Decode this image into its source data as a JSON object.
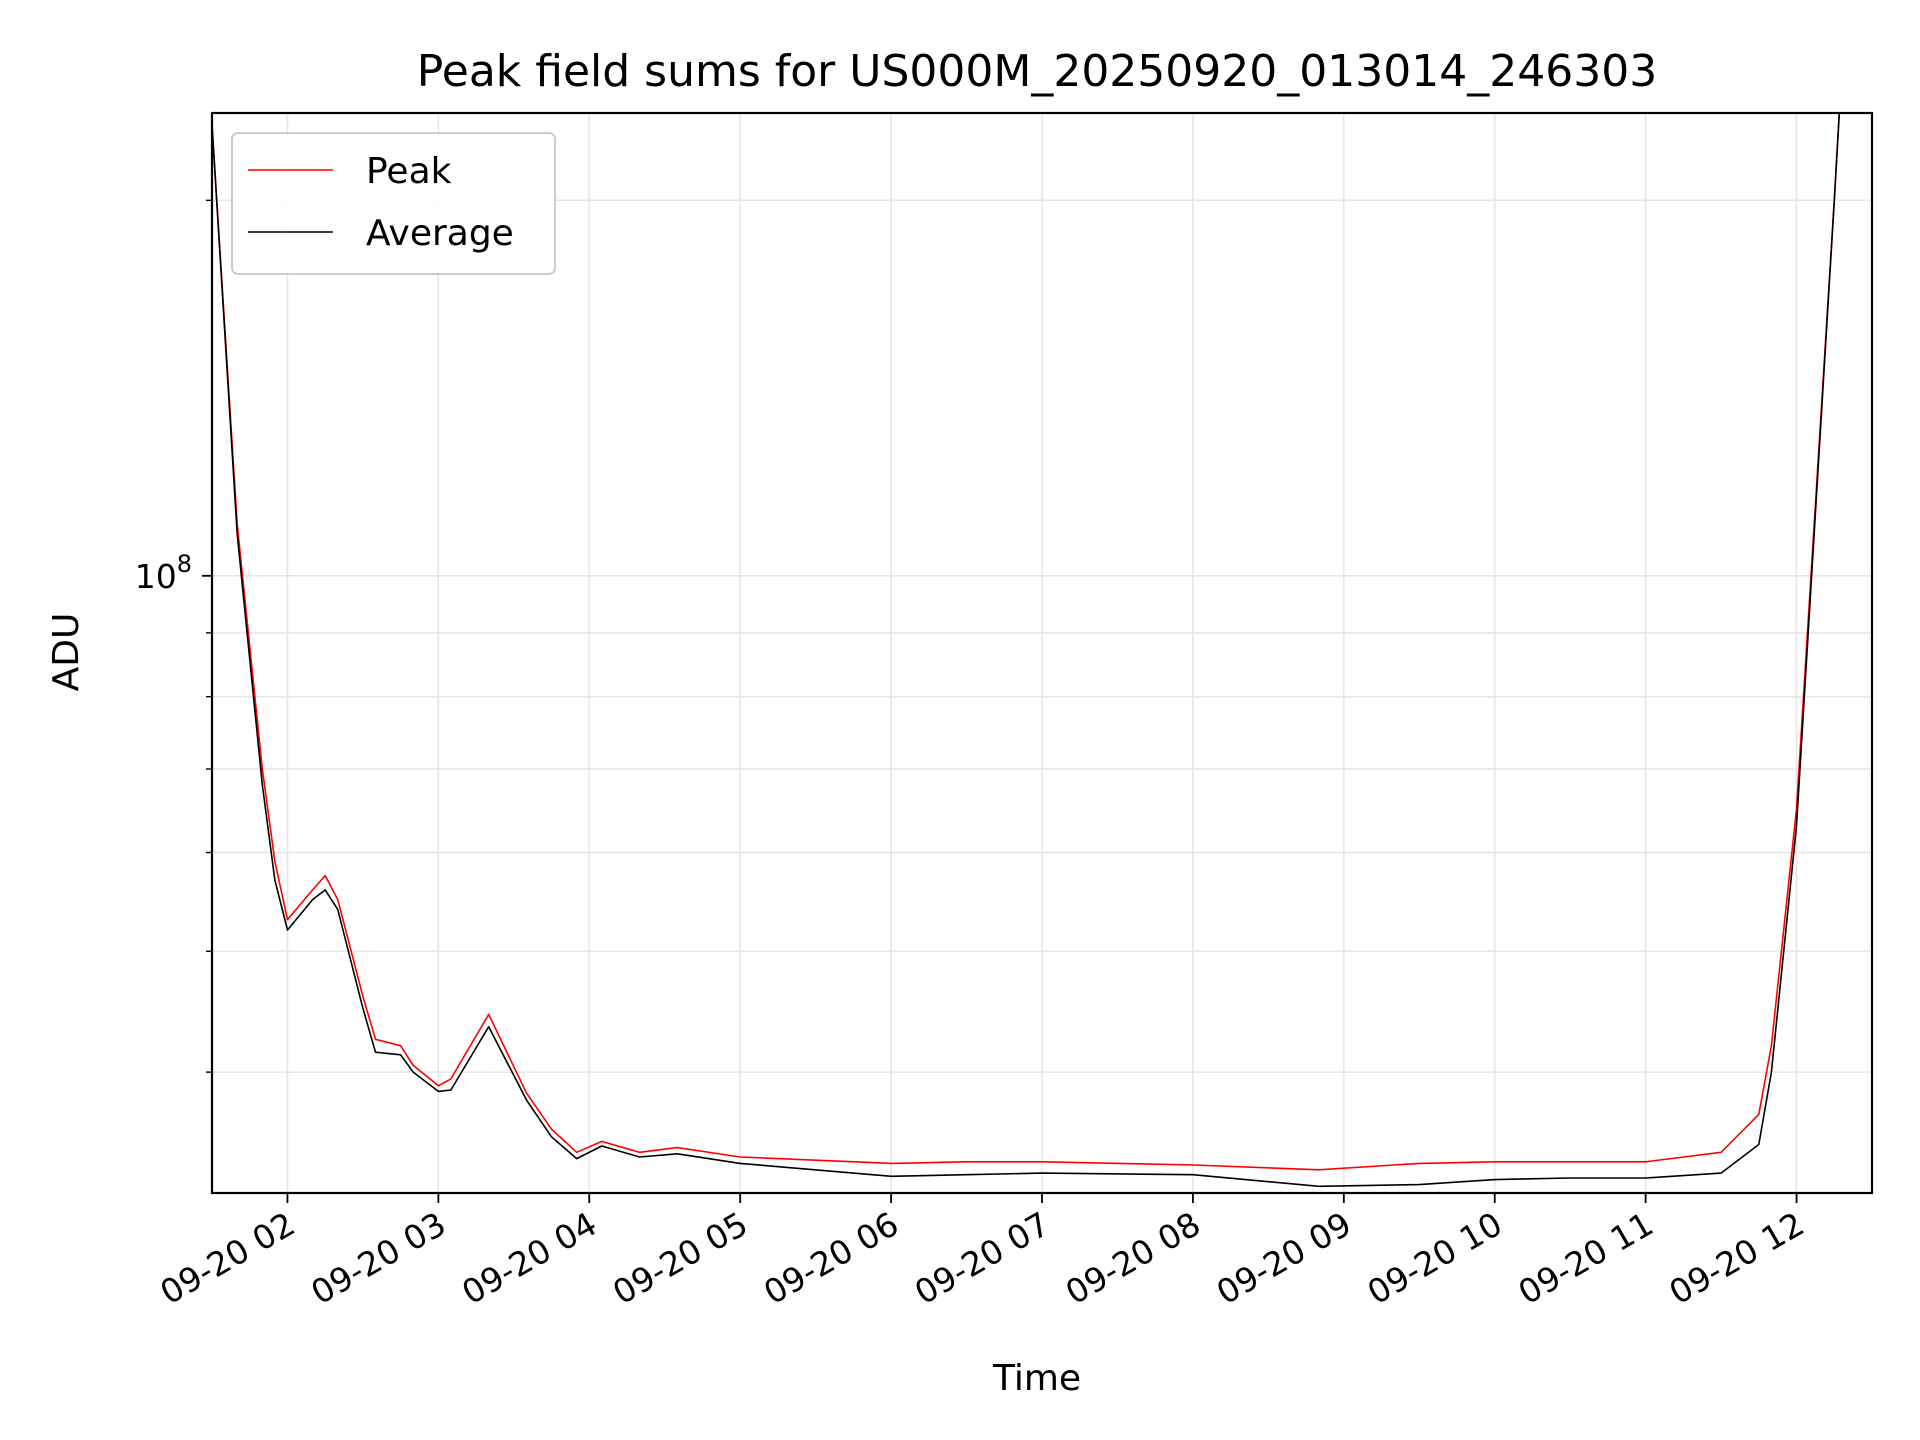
{
  "chart_data": {
    "type": "line",
    "title": "Peak field sums for US000M_20250920_013014_246303",
    "xlabel": "Time",
    "ylabel": "ADU",
    "yscale": "log",
    "ylim": [
      32000000,
      235000000
    ],
    "xlim": [
      "2025-09-20 01:30",
      "2025-09-20 12:30"
    ],
    "x_ticks": [
      "09-20 02",
      "09-20 03",
      "09-20 04",
      "09-20 05",
      "09-20 06",
      "09-20 07",
      "09-20 08",
      "09-20 09",
      "09-20 10",
      "09-20 11",
      "09-20 12"
    ],
    "y_ticks": [
      {
        "value": 100000000,
        "label_base": "10",
        "label_exp": "8"
      }
    ],
    "grid": true,
    "legend_position": "upper left",
    "series": [
      {
        "name": "Peak",
        "color": "#ff0000",
        "x": [
          "2025-09-20 01:30",
          "2025-09-20 01:40",
          "2025-09-20 01:50",
          "2025-09-20 01:55",
          "2025-09-20 02:00",
          "2025-09-20 02:10",
          "2025-09-20 02:15",
          "2025-09-20 02:20",
          "2025-09-20 02:30",
          "2025-09-20 02:35",
          "2025-09-20 02:45",
          "2025-09-20 02:50",
          "2025-09-20 03:00",
          "2025-09-20 03:05",
          "2025-09-20 03:20",
          "2025-09-20 03:35",
          "2025-09-20 03:45",
          "2025-09-20 03:55",
          "2025-09-20 04:05",
          "2025-09-20 04:20",
          "2025-09-20 04:35",
          "2025-09-20 05:00",
          "2025-09-20 06:00",
          "2025-09-20 06:30",
          "2025-09-20 07:00",
          "2025-09-20 08:00",
          "2025-09-20 08:50",
          "2025-09-20 09:30",
          "2025-09-20 10:00",
          "2025-09-20 10:30",
          "2025-09-20 11:00",
          "2025-09-20 11:30",
          "2025-09-20 11:45",
          "2025-09-20 11:50",
          "2025-09-20 12:00",
          "2025-09-20 12:15",
          "2025-09-20 12:17"
        ],
        "values": [
          230000000,
          110000000,
          70000000,
          59000000,
          53000000,
          56000000,
          57500000,
          55000000,
          46000000,
          42500000,
          42000000,
          40500000,
          39000000,
          39500000,
          44500000,
          38500000,
          36000000,
          34500000,
          35200000,
          34500000,
          34800000,
          34200000,
          33800000,
          33900000,
          33900000,
          33700000,
          33400000,
          33800000,
          33900000,
          33900000,
          33900000,
          34500000,
          37000000,
          42000000,
          65000000,
          200000000,
          235000000
        ]
      },
      {
        "name": "Average",
        "color": "#000000",
        "x": [
          "2025-09-20 01:30",
          "2025-09-20 01:40",
          "2025-09-20 01:50",
          "2025-09-20 01:55",
          "2025-09-20 02:00",
          "2025-09-20 02:10",
          "2025-09-20 02:15",
          "2025-09-20 02:20",
          "2025-09-20 02:30",
          "2025-09-20 02:35",
          "2025-09-20 02:45",
          "2025-09-20 02:50",
          "2025-09-20 03:00",
          "2025-09-20 03:05",
          "2025-09-20 03:20",
          "2025-09-20 03:35",
          "2025-09-20 03:45",
          "2025-09-20 03:55",
          "2025-09-20 04:05",
          "2025-09-20 04:20",
          "2025-09-20 04:35",
          "2025-09-20 05:00",
          "2025-09-20 06:00",
          "2025-09-20 06:30",
          "2025-09-20 07:00",
          "2025-09-20 08:00",
          "2025-09-20 08:50",
          "2025-09-20 09:30",
          "2025-09-20 10:00",
          "2025-09-20 10:30",
          "2025-09-20 11:00",
          "2025-09-20 11:30",
          "2025-09-20 11:45",
          "2025-09-20 11:50",
          "2025-09-20 12:00",
          "2025-09-20 12:15",
          "2025-09-20 12:17"
        ],
        "values": [
          230000000,
          108000000,
          68000000,
          57000000,
          52000000,
          55000000,
          56000000,
          54000000,
          45000000,
          41500000,
          41300000,
          40000000,
          38600000,
          38700000,
          43500000,
          38000000,
          35500000,
          34100000,
          34900000,
          34200000,
          34400000,
          33800000,
          33000000,
          33100000,
          33200000,
          33100000,
          32400000,
          32500000,
          32800000,
          32900000,
          32900000,
          33200000,
          35000000,
          40000000,
          63000000,
          200000000,
          235000000
        ]
      }
    ]
  }
}
